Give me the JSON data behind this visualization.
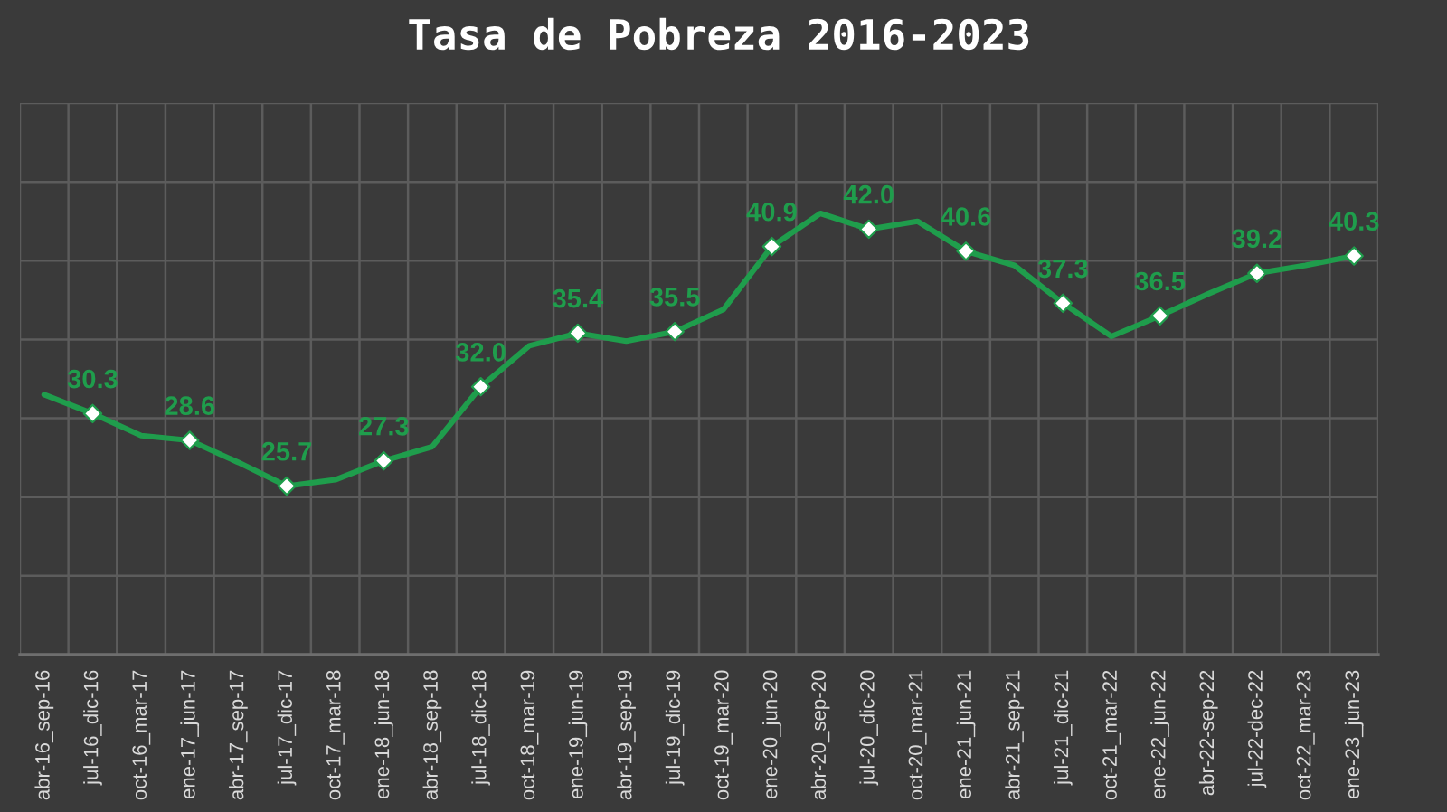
{
  "chart_data": {
    "type": "line",
    "title": "Tasa de Pobreza 2016-2023",
    "categories": [
      "abr-16_sep-16",
      "jul-16_dic-16",
      "oct-16_mar-17",
      "ene-17_jun-17",
      "abr-17_sep-17",
      "jul-17_dic-17",
      "oct-17_mar-18",
      "ene-18_jun-18",
      "abr-18_sep-18",
      "jul-18_dic-18",
      "oct-18_mar-19",
      "ene-19_jun-19",
      "abr-19_sep-19",
      "jul-19_dic-19",
      "oct-19_mar-20",
      "ene-20_jun-20",
      "abr-20_sep-20",
      "jul-20_dic-20",
      "oct-20_mar-21",
      "ene-21_jun-21",
      "abr-21_sep-21",
      "jul-21_dic-21",
      "oct-21_mar-22",
      "ene-22_jun-22",
      "abr-22-sep-22",
      "jul-22-dec-22",
      "oct-22_mar-23",
      "ene-23_jun-23"
    ],
    "series": [
      {
        "color": "#1f9d4c",
        "values": [
          31.5,
          30.3,
          28.9,
          28.6,
          27.2,
          25.7,
          26.1,
          27.3,
          28.2,
          32.0,
          34.6,
          35.4,
          34.9,
          35.5,
          36.9,
          40.9,
          43.0,
          42.0,
          42.5,
          40.6,
          39.7,
          37.3,
          35.2,
          36.5,
          37.9,
          39.2,
          39.7,
          40.3
        ],
        "value_labels": [
          null,
          "30.3",
          null,
          "28.6",
          null,
          "25.7",
          null,
          "27.3",
          null,
          "32.0",
          null,
          "35.4",
          null,
          "35.5",
          null,
          "40.9",
          null,
          "42.0",
          null,
          "40.6",
          null,
          "37.3",
          null,
          "36.5",
          null,
          "39.2",
          null,
          "40.3"
        ]
      }
    ],
    "ylim": [
      15,
      50
    ],
    "tick_labels": "x",
    "grid": true,
    "marker": "diamond",
    "line_style": "solid"
  }
}
